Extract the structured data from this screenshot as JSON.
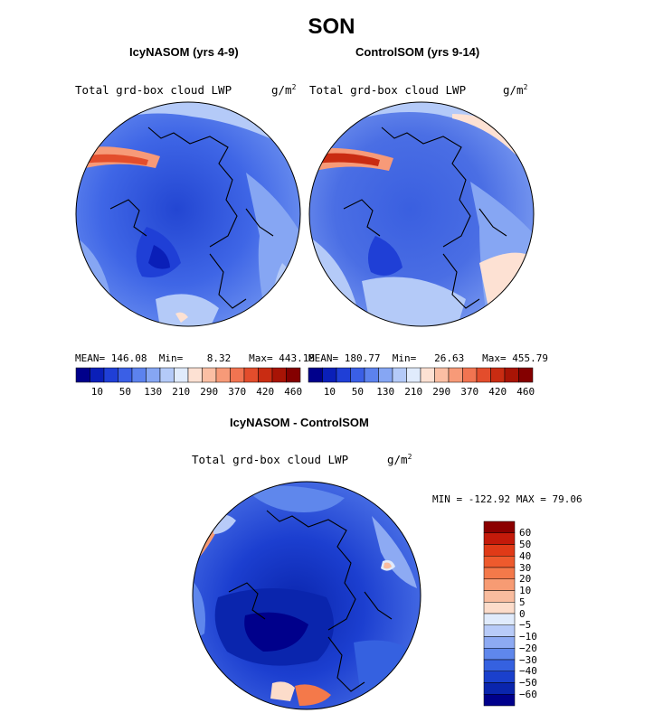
{
  "title": "SON",
  "panels": [
    {
      "title": "IcyNASOM (yrs 4-9)",
      "variable": "Total grd-box cloud LWP",
      "units": "g/m",
      "units_exp": "2",
      "stats": {
        "mean_label": "MEAN=",
        "mean": "146.08",
        "min_label": "Min=",
        "min": "8.32",
        "max_label": "Max=",
        "max": "443.18"
      }
    },
    {
      "title": "ControlSOM (yrs 9-14)",
      "variable": "Total grd-box cloud LWP",
      "units": "g/m",
      "units_exp": "2",
      "stats": {
        "mean_label": "MEAN=",
        "mean": "180.77",
        "min_label": "Min=",
        "min": "26.63",
        "max_label": "Max=",
        "max": "455.79"
      }
    },
    {
      "title": "IcyNASOM - ControlSOM",
      "variable": "Total grd-box cloud LWP",
      "units": "g/m",
      "units_exp": "2",
      "stats_text": "MIN = -122.92 MAX =  79.06"
    }
  ],
  "colorbar_top": {
    "ticks": [
      "10",
      "50",
      "130",
      "210",
      "290",
      "370",
      "420",
      "460"
    ],
    "colors": [
      "#00008b",
      "#0a1fb8",
      "#1f3fd6",
      "#3a5fe6",
      "#5c82ee",
      "#86a6f3",
      "#b4caf8",
      "#e0ebfc",
      "#fde1d3",
      "#fbbfa4",
      "#f79a78",
      "#f17451",
      "#e34d2c",
      "#c92c12",
      "#a81405",
      "#840000"
    ]
  },
  "colorbar_diff": {
    "ticks": [
      "60",
      "50",
      "40",
      "30",
      "20",
      "10",
      "5",
      "0",
      "−5",
      "−10",
      "−20",
      "−30",
      "−40",
      "−50",
      "−60"
    ],
    "colors_top_to_bottom": [
      "#8b0000",
      "#c41a0a",
      "#e03a17",
      "#ee5a2d",
      "#f4794a",
      "#f79b73",
      "#f9bc9e",
      "#fcdcca",
      "#e0ebfc",
      "#b8cbf8",
      "#8daaf3",
      "#5f87ec",
      "#3561e0",
      "#1a40cc",
      "#0a25ad",
      "#00008b"
    ]
  },
  "map_colors": {
    "ocean_base_1": "#3f66e6",
    "ocean_base_2": "#4a6ee4",
    "ocean_base_3": "#1c3fd0",
    "light": "#86a6f3",
    "pale": "#b4caf8",
    "dark": "#1f3fd6",
    "deep": "#0a1fb8",
    "warm1": "#fde1d3",
    "warm2": "#f79a78",
    "warm3": "#e34d2c",
    "warm4": "#c92c12"
  }
}
